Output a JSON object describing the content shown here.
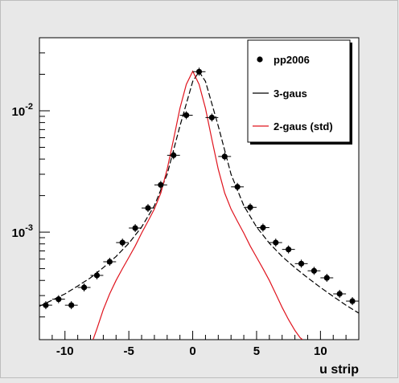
{
  "chart_data": {
    "type": "scatter",
    "xlabel": "u strip",
    "ylabel": "",
    "xlim": [
      -12,
      13
    ],
    "ylim": [
      0.00013,
      0.04
    ],
    "y_scale": "log",
    "x_tick_labels": [
      "-10",
      "-5",
      "0",
      "5",
      "10"
    ],
    "x_tick_values": [
      -10,
      -5,
      0,
      5,
      10
    ],
    "y_tick_labels": [
      {
        "base": "10",
        "exp": "-2",
        "value": 0.01
      },
      {
        "base": "10",
        "exp": "-3",
        "value": 0.001
      }
    ],
    "grid": false,
    "legend_position": "top-right",
    "legend": [
      {
        "label": "pp2006",
        "style": "marker",
        "color": "#000000"
      },
      {
        "label": "3-gaus",
        "style": "line",
        "color": "#000000"
      },
      {
        "label": "2-gaus (std)",
        "style": "line",
        "color": "#e0141e"
      }
    ],
    "series": [
      {
        "name": "pp2006",
        "kind": "points",
        "color": "#000000",
        "x": [
          -11.5,
          -10.5,
          -9.5,
          -8.5,
          -7.5,
          -6.5,
          -5.5,
          -4.5,
          -3.5,
          -2.5,
          -1.5,
          -0.5,
          0.5,
          1.5,
          2.5,
          3.5,
          4.5,
          5.5,
          6.5,
          7.5,
          8.5,
          9.5,
          10.5,
          11.5,
          12.5
        ],
        "y": [
          0.00025,
          0.00028,
          0.00025,
          0.00035,
          0.00044,
          0.00057,
          0.00082,
          0.00108,
          0.00158,
          0.00245,
          0.0043,
          0.0092,
          0.021,
          0.0088,
          0.0042,
          0.00236,
          0.0016,
          0.00109,
          0.00082,
          0.00072,
          0.00055,
          0.00048,
          0.00042,
          0.00031,
          0.00027
        ],
        "x_err": 0.5
      },
      {
        "name": "3-gaus",
        "kind": "line",
        "color": "#000000",
        "dash": "dashed",
        "x": [
          -12,
          -11,
          -10,
          -9,
          -8,
          -7,
          -6,
          -5,
          -4,
          -3,
          -2,
          -1,
          0,
          0.5,
          1,
          2,
          3,
          4,
          5,
          6,
          7,
          8,
          9,
          10,
          11,
          12,
          13
        ],
        "y": [
          0.000245,
          0.000275,
          0.00031,
          0.00036,
          0.00042,
          0.00051,
          0.00063,
          0.00081,
          0.0011,
          0.00165,
          0.003,
          0.0075,
          0.0175,
          0.021,
          0.0175,
          0.0075,
          0.003,
          0.00165,
          0.0011,
          0.00081,
          0.00063,
          0.00051,
          0.00042,
          0.00035,
          0.000295,
          0.00025,
          0.000215
        ]
      },
      {
        "name": "2-gaus (std)",
        "kind": "line",
        "color": "#e0141e",
        "dash": "solid",
        "x": [
          -7.8,
          -7.5,
          -7,
          -6.5,
          -6,
          -5.5,
          -5,
          -4.5,
          -4,
          -3.5,
          -3,
          -2.5,
          -2,
          -1.5,
          -1,
          -0.5,
          0,
          0.5,
          1,
          1.5,
          2,
          2.5,
          3,
          3.5,
          4,
          4.5,
          5,
          5.5,
          6,
          6.5,
          7,
          7.5,
          8,
          8.4,
          8.6
        ],
        "y": [
          0.00013,
          0.00016,
          0.00023,
          0.00031,
          0.0004,
          0.0005,
          0.00062,
          0.00077,
          0.00098,
          0.00123,
          0.00155,
          0.0021,
          0.0033,
          0.0058,
          0.0105,
          0.0165,
          0.0212,
          0.0165,
          0.0105,
          0.0058,
          0.0033,
          0.0021,
          0.00155,
          0.00123,
          0.00098,
          0.00077,
          0.00062,
          0.0005,
          0.0004,
          0.00031,
          0.00024,
          0.00019,
          0.000155,
          0.000135,
          0.00013
        ]
      }
    ]
  }
}
